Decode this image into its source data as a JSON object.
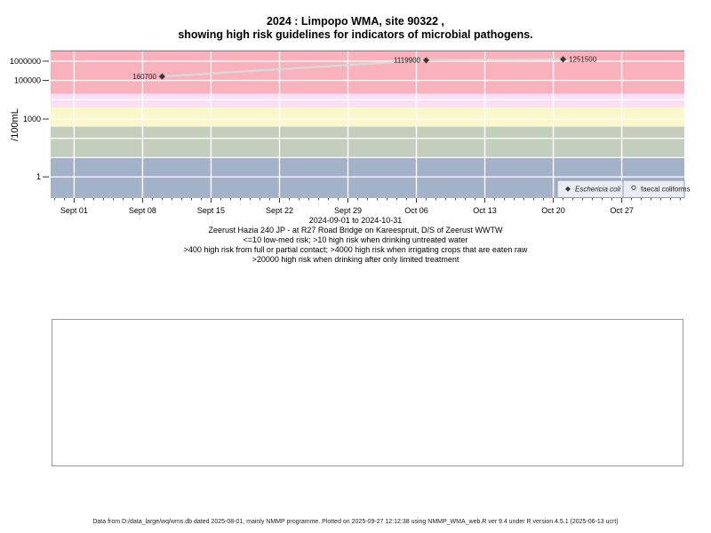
{
  "title": {
    "line1": "2024 : Limpopo WMA, site 90322 ,",
    "line2": "showing high risk guidelines for indicators of microbial pathogens."
  },
  "chart_data": {
    "type": "scatter",
    "ylabel": "/100mL",
    "x_range": [
      "2024-09-01",
      "2024-10-31"
    ],
    "x_major_ticks": [
      {
        "date": "2024-09-01",
        "label": "Sept 01"
      },
      {
        "date": "2024-09-08",
        "label": "Sept 08"
      },
      {
        "date": "2024-09-15",
        "label": "Sept 15"
      },
      {
        "date": "2024-09-22",
        "label": "Sept 22"
      },
      {
        "date": "2024-09-29",
        "label": "Sept 29"
      },
      {
        "date": "2024-10-06",
        "label": "Oct 06"
      },
      {
        "date": "2024-10-13",
        "label": "Oct 13"
      },
      {
        "date": "2024-10-20",
        "label": "Oct 20"
      },
      {
        "date": "2024-10-27",
        "label": "Oct 27"
      }
    ],
    "y_log_ticks": [
      {
        "value": 1,
        "label": "1"
      },
      {
        "value": 1000,
        "label": "1000"
      },
      {
        "value": 100000,
        "label": "100000"
      },
      {
        "value": 1000000,
        "label": "1000000"
      }
    ],
    "y_domain_log": [
      -1.1,
      6.5
    ],
    "grid": true,
    "gridline_color": "#ffffff",
    "bands": [
      {
        "name": "high-risk-drinking-limited-treatment",
        "from": 20000,
        "to": 3160000,
        "color": "#f9b1bc"
      },
      {
        "name": "high-risk-irrigating-raw-crops",
        "from": 4000,
        "to": 20000,
        "color": "#fae0f7"
      },
      {
        "name": "high-risk-contact",
        "from": 400,
        "to": 4000,
        "color": "#faf7ca"
      },
      {
        "name": "high-risk-drinking-untreated",
        "from": 10,
        "to": 400,
        "color": "#c4cebc"
      },
      {
        "name": "low-med-risk",
        "from": 0.08,
        "to": 10,
        "color": "#a3b2c8"
      }
    ],
    "series": [
      {
        "name": "Eschericia coli",
        "marker": "diamond-filled",
        "marker_color": "#383838",
        "line_color": "#d8d8d8",
        "points": [
          {
            "date": "2024-09-10",
            "value": 160700,
            "label": "160700",
            "label_side": "left"
          },
          {
            "date": "2024-10-07",
            "value": 1119900,
            "label": "1119900",
            "label_side": "left"
          },
          {
            "date": "2024-10-21",
            "value": 1251500,
            "label": "1251500",
            "label_side": "right"
          }
        ]
      },
      {
        "name": "faecal coliforms",
        "marker": "circle-open",
        "marker_color": "#444444",
        "line_color": "#d8d8d8",
        "points": []
      }
    ],
    "legend": {
      "position": "bottom-right",
      "background": "#e9ecf3",
      "border": "#8e99ab",
      "entries": [
        {
          "marker": "diamond-filled",
          "label": "Eschericia coli",
          "italic": true
        },
        {
          "marker": "circle-open",
          "label": "faecal coliforms",
          "italic": false
        }
      ]
    }
  },
  "captions": {
    "range": "2024-09-01 to 2024-10-31",
    "site": "Zeerust Hazia 240 JP - at R27 Road Bridge on Kareespruit, D/S of Zeerust WWTW",
    "risk1": "<=10 low-med risk; >10 high risk when drinking untreated water",
    "risk2": ">400 high risk from full or partial contact; >4000 high risk when irrigating crops that are eaten raw",
    "risk3": ">20000 high risk when drinking after only limited treatment"
  },
  "footer": {
    "text": "Data from D:/data_large/wq/wms.db dated 2025-08-01, mainly NMMP programme. Plotted on 2025-09-27 12:12:38 using NMMP_WMA_web.R ver 9.4 under R version 4.5.1 (2025-06-13 ucrt)"
  }
}
